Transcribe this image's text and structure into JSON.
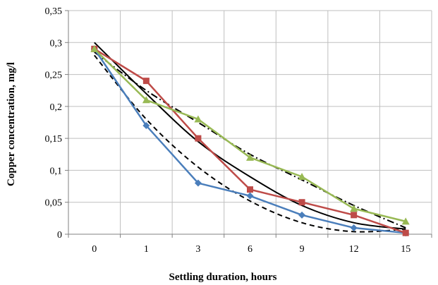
{
  "chart_data": {
    "type": "line",
    "xlabel": "Settling duration, hours",
    "ylabel": "Copper concentration, mg/l",
    "categories": [
      "0",
      "1",
      "3",
      "6",
      "9",
      "12",
      "15"
    ],
    "y_ticks": [
      "0",
      "0,05",
      "0,1",
      "0,15",
      "0,2",
      "0,25",
      "0,3",
      "0,35"
    ],
    "ylim": [
      0,
      0.35
    ],
    "grid": true,
    "series": [
      {
        "values": [
          0.29,
          0.17,
          0.08,
          0.06,
          0.03,
          0.01,
          0.002
        ],
        "color": "#4a7ebb",
        "marker": "diamond"
      },
      {
        "values": [
          0.29,
          0.24,
          0.15,
          0.07,
          0.05,
          0.03,
          0.002
        ],
        "color": "#be4b48",
        "marker": "square"
      },
      {
        "values": [
          0.29,
          0.21,
          0.18,
          0.12,
          0.09,
          0.04,
          0.02
        ],
        "color": "#98b954",
        "marker": "triangle"
      }
    ],
    "trendlines": [
      {
        "values": [
          0.28,
          0.18,
          0.105,
          0.052,
          0.018,
          0.004,
          0.008
        ],
        "style": "dashed",
        "color": "#000000"
      },
      {
        "values": [
          0.3,
          0.22,
          0.145,
          0.09,
          0.045,
          0.018,
          0.008
        ],
        "style": "solid",
        "color": "#000000"
      },
      {
        "values": [
          0.285,
          0.225,
          0.175,
          0.125,
          0.085,
          0.045,
          0.01
        ],
        "style": "dash-dot",
        "color": "#000000"
      }
    ]
  }
}
